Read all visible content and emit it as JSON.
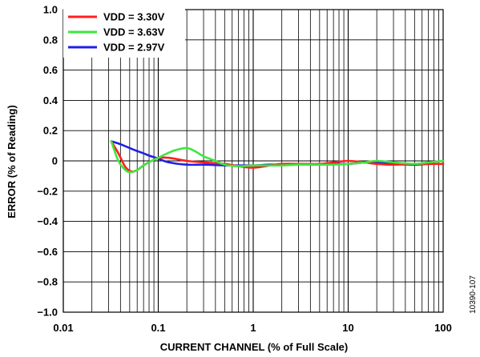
{
  "figure_id": "10390-107",
  "chart_data": {
    "type": "line",
    "title": "",
    "xlabel": "CURRENT CHANNEL (% of Full Scale)",
    "ylabel": "ERROR (% of Reading)",
    "xscale": "log",
    "xlim": [
      0.01,
      100
    ],
    "ylim": [
      -1.0,
      1.0
    ],
    "xticks": [
      0.01,
      0.1,
      1,
      10,
      100
    ],
    "xtick_labels": [
      "0.01",
      "0.1",
      "1",
      "10",
      "100"
    ],
    "yticks": [
      1.0,
      0.8,
      0.6,
      0.4,
      0.2,
      0,
      -0.2,
      -0.4,
      -0.6,
      -0.8,
      -1.0
    ],
    "ytick_labels": [
      "1.0",
      "0.8",
      "0.6",
      "0.4",
      "0.2",
      "0",
      "−0.2",
      "−0.4",
      "−0.6",
      "−0.8",
      "−1.0"
    ],
    "grid": true,
    "legend": "top-left",
    "series": [
      {
        "name": "VDD = 3.30V",
        "color": "#ff1f1f",
        "x": [
          0.032,
          0.038,
          0.045,
          0.052,
          0.06,
          0.07,
          0.085,
          0.1,
          0.13,
          0.2,
          0.3,
          0.5,
          0.7,
          1.0,
          1.5,
          2,
          3,
          5,
          7,
          10,
          15,
          20,
          30,
          50,
          70,
          100
        ],
        "y": [
          0.13,
          0.05,
          -0.04,
          -0.07,
          -0.06,
          -0.03,
          0.0,
          0.02,
          0.02,
          0.0,
          -0.01,
          -0.02,
          -0.035,
          -0.045,
          -0.03,
          -0.02,
          -0.02,
          -0.02,
          -0.01,
          0.0,
          -0.01,
          -0.02,
          -0.025,
          -0.02,
          -0.02,
          -0.02
        ]
      },
      {
        "name": "VDD = 3.63V",
        "color": "#3fe63f",
        "x": [
          0.032,
          0.038,
          0.045,
          0.05,
          0.055,
          0.06,
          0.07,
          0.085,
          0.1,
          0.12,
          0.15,
          0.2,
          0.25,
          0.3,
          0.4,
          0.5,
          0.7,
          1.0,
          1.5,
          2,
          3,
          5,
          7,
          10,
          15,
          20,
          30,
          50,
          70,
          100
        ],
        "y": [
          0.13,
          0.0,
          -0.06,
          -0.075,
          -0.07,
          -0.06,
          -0.03,
          0.0,
          0.02,
          0.045,
          0.07,
          0.085,
          0.06,
          0.03,
          0.0,
          -0.025,
          -0.035,
          -0.03,
          -0.03,
          -0.03,
          -0.025,
          -0.025,
          -0.025,
          -0.02,
          -0.01,
          0.0,
          -0.01,
          -0.02,
          -0.01,
          0.0
        ]
      },
      {
        "name": "VDD = 2.97V",
        "color": "#1f1fe6",
        "x": [
          0.032,
          0.04,
          0.05,
          0.06,
          0.07,
          0.08,
          0.1,
          0.13,
          0.2,
          0.3,
          0.5,
          0.7,
          1.0,
          1.5,
          2,
          3,
          5,
          7,
          10,
          15,
          20,
          30,
          50,
          70,
          100
        ],
        "y": [
          0.13,
          0.11,
          0.085,
          0.065,
          0.05,
          0.035,
          0.015,
          -0.01,
          -0.025,
          -0.025,
          -0.03,
          -0.03,
          -0.03,
          -0.025,
          -0.025,
          -0.025,
          -0.025,
          -0.02,
          -0.02,
          -0.01,
          -0.01,
          -0.02,
          -0.025,
          -0.02,
          -0.02
        ]
      }
    ]
  }
}
